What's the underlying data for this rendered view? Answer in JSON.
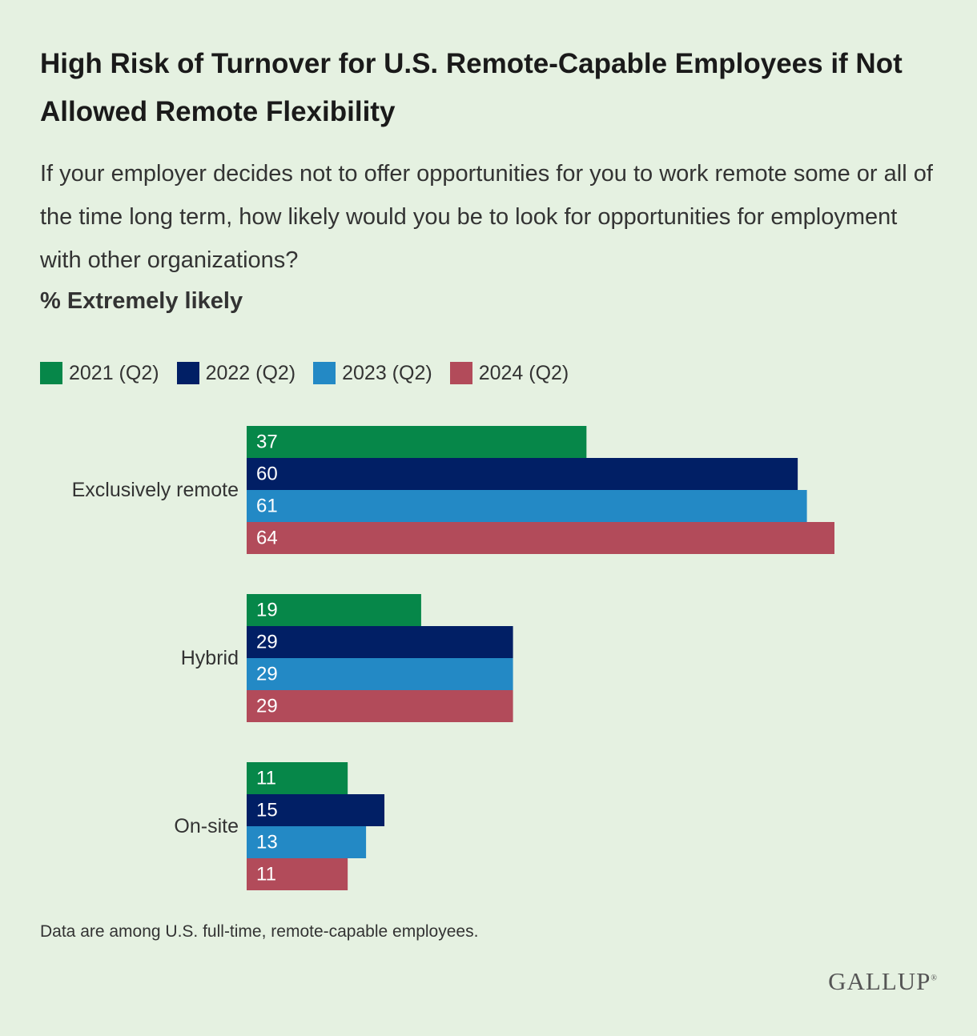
{
  "title": "High Risk of Turnover for U.S. Remote-Capable Employees if Not Allowed Remote Flexibility",
  "subtitle": "If your employer decides not to offer opportunities for you to work remote some or all of the time long term, how likely would you be to look for opportunities for employment with other organizations?",
  "unit_label": "% Extremely likely",
  "footnote": "Data are among U.S. full-time, remote-capable employees.",
  "logo": {
    "text": "GALLUP",
    "mark": "®"
  },
  "colors": {
    "2021": "#068749",
    "2022": "#011f65",
    "2023": "#2389c5",
    "2024": "#b24b5a",
    "background": "#e5f1e1"
  },
  "chart_data": {
    "type": "bar",
    "orientation": "horizontal",
    "categories": [
      "Exclusively remote",
      "Hybrid",
      "On-site"
    ],
    "series": [
      {
        "name": "2021 (Q2)",
        "color": "#068749",
        "values": [
          37,
          19,
          11
        ]
      },
      {
        "name": "2022 (Q2)",
        "color": "#011f65",
        "values": [
          60,
          29,
          15
        ]
      },
      {
        "name": "2023 (Q2)",
        "color": "#2389c5",
        "values": [
          61,
          29,
          13
        ]
      },
      {
        "name": "2024 (Q2)",
        "color": "#b24b5a",
        "values": [
          64,
          29,
          11
        ]
      }
    ],
    "xlim": [
      0,
      64
    ],
    "grid": false,
    "legend": "top-left",
    "data_labels": "inside-left"
  }
}
